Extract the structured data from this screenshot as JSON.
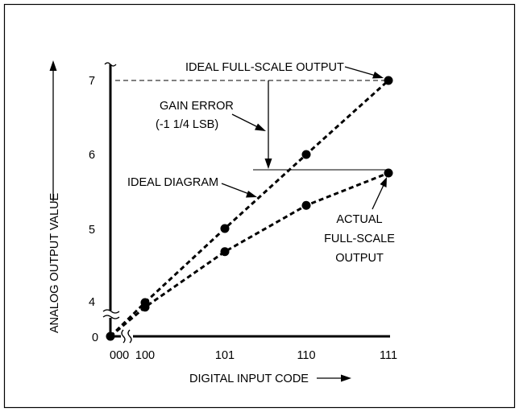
{
  "chart_data": {
    "type": "line",
    "title": "",
    "xlabel": "DIGITAL INPUT CODE",
    "ylabel": "ANALOG OUTPUT VALUE",
    "x_ticks": [
      "000",
      "100",
      "101",
      "110",
      "111"
    ],
    "y_ticks": [
      "0",
      "4",
      "5",
      "6",
      "7"
    ],
    "x_axis_break": "between 000 and 100",
    "y_axis_break": "between 0 and 4",
    "grid": false,
    "series": [
      {
        "key": "ideal",
        "x": [
          "000",
          "100",
          "101",
          "110",
          "111"
        ],
        "y": [
          0,
          4,
          5,
          6,
          7
        ],
        "markers_at": [
          "100",
          "101",
          "110",
          "111"
        ],
        "style": "dashed",
        "color": "#000000"
      },
      {
        "key": "actual",
        "x": [
          "000",
          "100",
          "101",
          "110",
          "111"
        ],
        "y": [
          0,
          3.9375,
          4.6875,
          5.3125,
          5.75
        ],
        "markers_at": [
          "100",
          "101",
          "110",
          "111"
        ],
        "style": "dashed",
        "color": "#000000"
      }
    ],
    "annotations": {
      "ideal_full_scale": "IDEAL FULL-SCALE OUTPUT",
      "gain_error_line1": "GAIN ERROR",
      "gain_error_line2": "(-1 1/4 LSB)",
      "ideal_diagram": "IDEAL DIAGRAM",
      "actual_line1": "ACTUAL",
      "actual_line2": "FULL-SCALE",
      "actual_line3": "OUTPUT"
    }
  }
}
